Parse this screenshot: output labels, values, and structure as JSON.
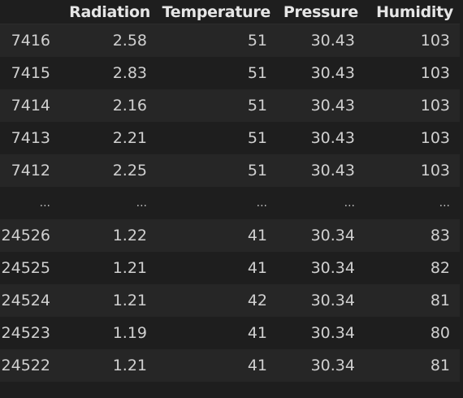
{
  "table": {
    "columns": [
      "",
      "Radiation",
      "Temperature",
      "Pressure",
      "Humidity"
    ],
    "rows": [
      {
        "index": "7416",
        "cells": [
          "2.58",
          "51",
          "30.43",
          "103"
        ]
      },
      {
        "index": "7415",
        "cells": [
          "2.83",
          "51",
          "30.43",
          "103"
        ]
      },
      {
        "index": "7414",
        "cells": [
          "2.16",
          "51",
          "30.43",
          "103"
        ]
      },
      {
        "index": "7413",
        "cells": [
          "2.21",
          "51",
          "30.43",
          "103"
        ]
      },
      {
        "index": "7412",
        "cells": [
          "2.25",
          "51",
          "30.43",
          "103"
        ]
      },
      {
        "index": "...",
        "cells": [
          "...",
          "...",
          "...",
          "..."
        ]
      },
      {
        "index": "24526",
        "cells": [
          "1.22",
          "41",
          "30.34",
          "83"
        ]
      },
      {
        "index": "24525",
        "cells": [
          "1.21",
          "41",
          "30.34",
          "82"
        ]
      },
      {
        "index": "24524",
        "cells": [
          "1.21",
          "42",
          "30.34",
          "81"
        ]
      },
      {
        "index": "24523",
        "cells": [
          "1.19",
          "41",
          "30.34",
          "80"
        ]
      },
      {
        "index": "24522",
        "cells": [
          "1.21",
          "41",
          "30.34",
          "81"
        ]
      }
    ]
  }
}
